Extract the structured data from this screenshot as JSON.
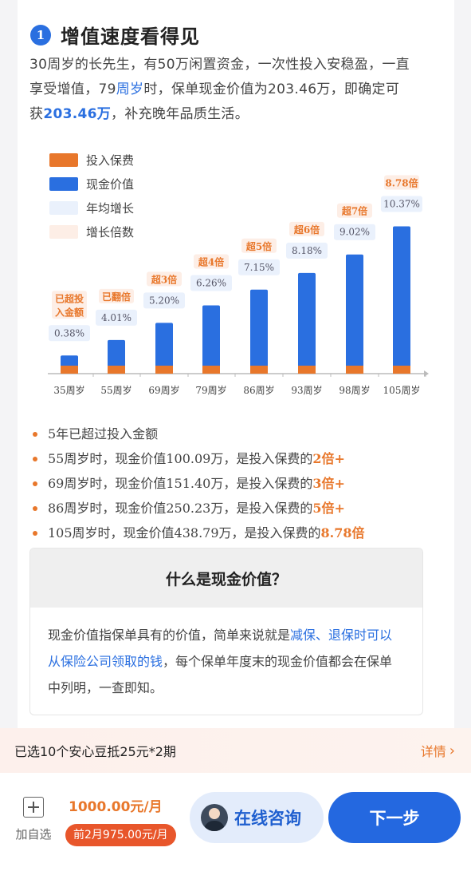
{
  "section": {
    "number": "1",
    "title": "增值速度看得见",
    "intro": {
      "p1": "30周岁的长先生，有50万闲置资金，一次性投入安稳盈，一直享受增值，79",
      "p2": "周岁",
      "p3": "时，保单现金价值为203.46万，即确定可获",
      "p4": "203.46万",
      "p5": "，补充晚年品质生活。"
    }
  },
  "chart_data": {
    "type": "bar",
    "legend": [
      {
        "label": "投入保费",
        "color": "#e8772b"
      },
      {
        "label": "现金价值",
        "color": "#2a6fe0"
      },
      {
        "label": "年均增长",
        "color": "#eaf1fc"
      },
      {
        "label": "增长倍数",
        "color": "#fdeee6"
      }
    ],
    "categories": [
      "35周岁",
      "55周岁",
      "69周岁",
      "79周岁",
      "86周岁",
      "93周岁",
      "98周岁",
      "105周岁"
    ],
    "series": [
      {
        "name": "投入保费",
        "values": [
          50,
          50,
          50,
          50,
          50,
          50,
          50,
          50
        ]
      },
      {
        "name": "现金价值",
        "values": [
          54,
          100.09,
          151.4,
          203.46,
          250.23,
          300,
          355,
          438.79
        ]
      }
    ],
    "growth_rates": [
      "0.38%",
      "4.01%",
      "5.20%",
      "6.26%",
      "7.15%",
      "8.18%",
      "9.02%",
      "10.37%"
    ],
    "multiples": [
      "已超投\n入金额",
      "已翻倍",
      "超3倍",
      "超4倍",
      "超5倍",
      "超6倍",
      "超7倍",
      "8.78倍"
    ],
    "ylim": [
      0,
      440
    ],
    "grid": false
  },
  "notes": [
    {
      "text": "5年已超过投入金额",
      "accent": ""
    },
    {
      "text": "55周岁时，现金价值100.09万，是投入保费的",
      "accent": "2倍+"
    },
    {
      "text": "69周岁时，现金价值151.40万，是投入保费的",
      "accent": "3倍+"
    },
    {
      "text": "86周岁时，现金价值250.23万，是投入保费的",
      "accent": "5倍+"
    },
    {
      "text": "105周岁时，现金价值438.79万，是投入保费的",
      "accent": "8.78倍"
    }
  ],
  "qa": {
    "title": "什么是现金价值？",
    "b1": "现金价值指保单具有的价值，简单来说就是",
    "b2": "减保、退保时可以从保险公司领取的钱",
    "b3": "，每个保单年度末的现金价值都会在保单中列明，一查即知。"
  },
  "promo": {
    "text": "已选10个安心豆抵25元*2期",
    "link": "详情"
  },
  "bottom": {
    "add_label": "加自选",
    "price": "1000.00元/月",
    "price_sub": "前2月975.00元/月",
    "consult_label": "在线咨询",
    "next_label": "下一步"
  },
  "colors": {
    "accent": "#e8772b",
    "primary": "#2a6fe0"
  }
}
